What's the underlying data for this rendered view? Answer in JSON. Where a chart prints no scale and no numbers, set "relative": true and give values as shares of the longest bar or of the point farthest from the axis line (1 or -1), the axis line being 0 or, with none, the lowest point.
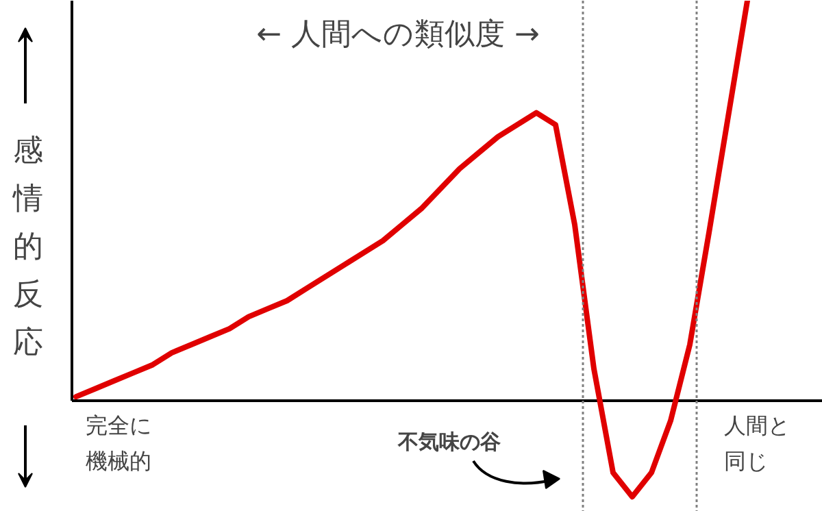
{
  "chart_data": {
    "type": "line",
    "relative": true,
    "title": "← 人間への類似度 →",
    "ylabel": "感情的反応",
    "categories": [
      null,
      null,
      null,
      null,
      null,
      null,
      null,
      null,
      null,
      null,
      null,
      null,
      null,
      null,
      null,
      null,
      null,
      null,
      null,
      null,
      null,
      null,
      null,
      null,
      null,
      null,
      null,
      null,
      null,
      null,
      null,
      null,
      null,
      null,
      null,
      null
    ],
    "series": [
      {
        "color": "#e00000",
        "values": [
          0.01,
          0.03,
          0.05,
          0.07,
          0.09,
          0.12,
          0.14,
          0.16,
          0.18,
          0.21,
          0.23,
          0.25,
          0.28,
          0.31,
          0.34,
          0.37,
          0.4,
          0.44,
          0.48,
          0.53,
          0.58,
          0.62,
          0.66,
          0.69,
          0.72,
          0.69,
          0.44,
          0.08,
          -0.18,
          -0.24,
          -0.18,
          -0.05,
          0.14,
          0.42,
          0.71,
          1
        ]
      }
    ],
    "annotations": [
      "完全に機械的",
      "人間と同じ",
      "不気味の谷"
    ],
    "marker": "none",
    "line_style": "solid"
  }
}
